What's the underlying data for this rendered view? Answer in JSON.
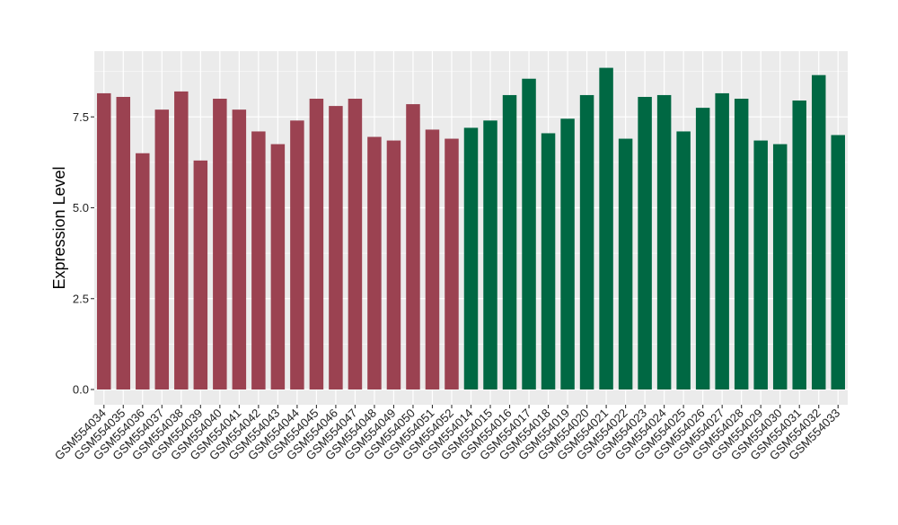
{
  "chart_data": {
    "type": "bar",
    "title": "",
    "xlabel": "",
    "ylabel": "Expression Level",
    "ylim": [
      0,
      9.0
    ],
    "yticks": [
      0.0,
      2.5,
      5.0,
      7.5
    ],
    "ytick_labels": [
      "0.0",
      "2.5",
      "5.0",
      "7.5"
    ],
    "grid": true,
    "legend": "none",
    "categories": [
      "GSM554034",
      "GSM554035",
      "GSM554036",
      "GSM554037",
      "GSM554038",
      "GSM554039",
      "GSM554040",
      "GSM554041",
      "GSM554042",
      "GSM554043",
      "GSM554044",
      "GSM554045",
      "GSM554046",
      "GSM554047",
      "GSM554048",
      "GSM554049",
      "GSM554050",
      "GSM554051",
      "GSM554052",
      "GSM554014",
      "GSM554015",
      "GSM554016",
      "GSM554017",
      "GSM554018",
      "GSM554019",
      "GSM554020",
      "GSM554021",
      "GSM554022",
      "GSM554023",
      "GSM554024",
      "GSM554025",
      "GSM554026",
      "GSM554027",
      "GSM554028",
      "GSM554029",
      "GSM554030",
      "GSM554031",
      "GSM554032",
      "GSM554033"
    ],
    "values": [
      8.15,
      8.05,
      6.5,
      7.7,
      8.2,
      6.3,
      8.0,
      7.7,
      7.1,
      6.75,
      7.4,
      8.0,
      7.8,
      8.0,
      6.95,
      6.85,
      7.85,
      7.15,
      6.9,
      7.2,
      7.4,
      8.1,
      8.55,
      7.05,
      7.45,
      8.1,
      8.85,
      6.9,
      8.05,
      8.1,
      7.1,
      7.75,
      8.15,
      8.0,
      6.85,
      6.75,
      7.95,
      8.65,
      7.0
    ],
    "groups": [
      0,
      0,
      0,
      0,
      0,
      0,
      0,
      0,
      0,
      0,
      0,
      0,
      0,
      0,
      0,
      0,
      0,
      0,
      0,
      1,
      1,
      1,
      1,
      1,
      1,
      1,
      1,
      1,
      1,
      1,
      1,
      1,
      1,
      1,
      1,
      1,
      1,
      1,
      1
    ],
    "colors": [
      "#9b4251",
      "#006843"
    ],
    "panel_color": "#ebebeb",
    "grid_color": "#ffffff"
  }
}
